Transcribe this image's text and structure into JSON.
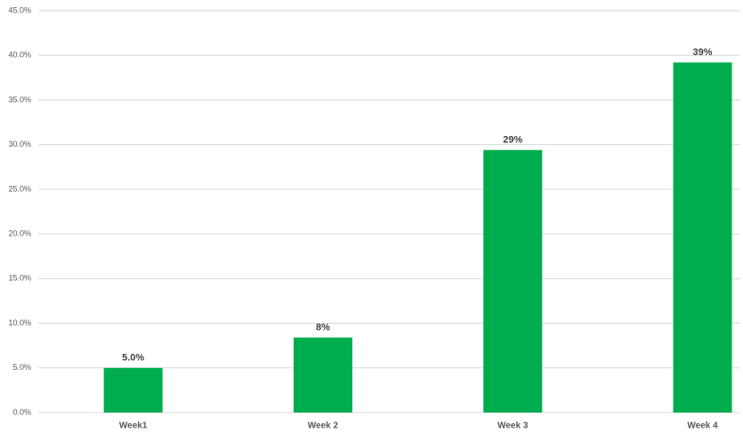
{
  "chart_data": {
    "type": "bar",
    "categories": [
      "Week1",
      "Week 2",
      "Week 3",
      "Week 4"
    ],
    "values": [
      5.0,
      8.4,
      29.4,
      39.2
    ],
    "value_labels": [
      "5.0%",
      "8%",
      "29%",
      "39%"
    ],
    "color": "#00ad4e",
    "ylim": [
      0,
      45
    ],
    "yticks": [
      {
        "value": 0,
        "label": "0.0%"
      },
      {
        "value": 5,
        "label": "5.0%"
      },
      {
        "value": 10,
        "label": "10.0%"
      },
      {
        "value": 15,
        "label": "15.0%"
      },
      {
        "value": 20,
        "label": "20.0%"
      },
      {
        "value": 25,
        "label": "25.0%"
      },
      {
        "value": 30,
        "label": "30.0%"
      },
      {
        "value": 35,
        "label": "35.0%"
      },
      {
        "value": 40,
        "label": "40.0%"
      },
      {
        "value": 45,
        "label": "45.0%"
      }
    ],
    "grid": true
  }
}
